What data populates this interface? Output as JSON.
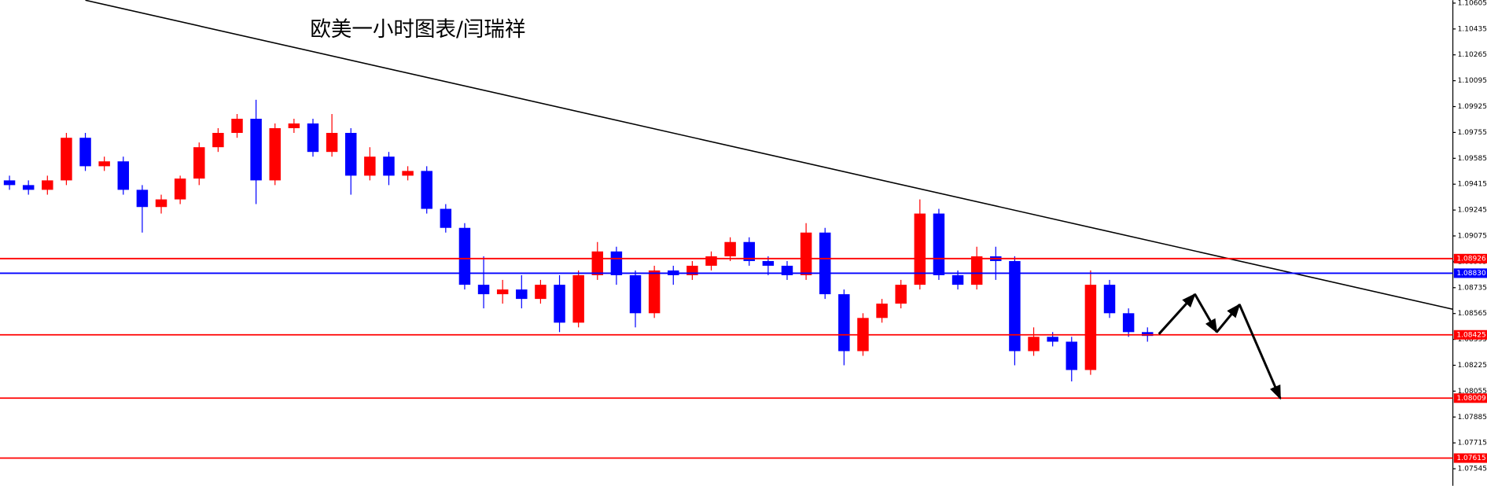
{
  "chart_data": {
    "type": "candlestick",
    "title": "欧美一小时图表/闫瑞祥",
    "up_color": "#ff0000",
    "down_color": "#0000ff",
    "open": [
      1.0944,
      1.09409,
      1.09378,
      1.0944,
      1.0972,
      1.09533,
      1.09565,
      1.09378,
      1.09265,
      1.09315,
      1.09452,
      1.09658,
      1.09752,
      1.09845,
      1.0944,
      1.09783,
      1.09814,
      1.09627,
      1.09752,
      1.09471,
      1.09596,
      1.09471,
      1.09502,
      1.09253,
      1.09128,
      1.08754,
      1.08692,
      1.08723,
      1.08661,
      1.08754,
      1.08505,
      1.08817,
      1.08973,
      1.08817,
      1.08567,
      1.08848,
      1.08817,
      1.08879,
      1.08941,
      1.09035,
      1.0891,
      1.08879,
      1.08817,
      1.09097,
      1.08692,
      1.08318,
      1.08536,
      1.0863,
      1.08754,
      1.09222,
      1.08817,
      1.08754,
      1.08941,
      1.0891,
      1.08318,
      1.08412,
      1.0838,
      1.08194,
      1.08754,
      1.08567,
      1.08443
    ],
    "high": [
      1.09471,
      1.0944,
      1.09471,
      1.09752,
      1.09752,
      1.09596,
      1.09596,
      1.09409,
      1.09346,
      1.09471,
      1.09689,
      1.09783,
      1.09876,
      1.0997,
      1.09814,
      1.09845,
      1.09845,
      1.09876,
      1.09783,
      1.09658,
      1.09627,
      1.09533,
      1.09533,
      1.09284,
      1.09159,
      1.08941,
      1.08786,
      1.08817,
      1.08786,
      1.08817,
      1.08848,
      1.09035,
      1.09004,
      1.08848,
      1.08879,
      1.08879,
      1.0891,
      1.08973,
      1.09066,
      1.09066,
      1.08941,
      1.0891,
      1.09159,
      1.09128,
      1.08723,
      1.08567,
      1.08661,
      1.08786,
      1.09315,
      1.09253,
      1.08848,
      1.09004,
      1.09004,
      1.08941,
      1.08474,
      1.08443,
      1.08412,
      1.08848,
      1.08786,
      1.08599,
      1.08474
    ],
    "low": [
      1.09378,
      1.09346,
      1.09346,
      1.09409,
      1.09502,
      1.09502,
      1.09346,
      1.09097,
      1.09222,
      1.09284,
      1.09409,
      1.09627,
      1.0972,
      1.09284,
      1.09409,
      1.09752,
      1.09596,
      1.09596,
      1.09346,
      1.0944,
      1.09409,
      1.0944,
      1.09222,
      1.09097,
      1.08723,
      1.08599,
      1.0863,
      1.08599,
      1.0863,
      1.08443,
      1.08474,
      1.08786,
      1.08754,
      1.08474,
      1.08536,
      1.08754,
      1.08786,
      1.08848,
      1.0891,
      1.08879,
      1.08817,
      1.08786,
      1.08786,
      1.08661,
      1.08225,
      1.08287,
      1.08505,
      1.08599,
      1.08723,
      1.08786,
      1.08723,
      1.08723,
      1.08786,
      1.08225,
      1.08287,
      1.08349,
      1.08119,
      1.08162,
      1.08536,
      1.08412,
      1.0838
    ],
    "close": [
      1.09409,
      1.09378,
      1.0944,
      1.0972,
      1.09533,
      1.09565,
      1.09378,
      1.09265,
      1.09315,
      1.09452,
      1.09658,
      1.09752,
      1.09845,
      1.0944,
      1.09783,
      1.09814,
      1.09627,
      1.09752,
      1.09471,
      1.09596,
      1.09471,
      1.09502,
      1.09253,
      1.09128,
      1.08754,
      1.08692,
      1.08723,
      1.08661,
      1.08754,
      1.08505,
      1.08817,
      1.08973,
      1.08817,
      1.08567,
      1.08848,
      1.08817,
      1.08879,
      1.08941,
      1.09035,
      1.0891,
      1.08879,
      1.08817,
      1.09097,
      1.08692,
      1.08318,
      1.08536,
      1.0863,
      1.08754,
      1.09222,
      1.08817,
      1.08754,
      1.08941,
      1.0891,
      1.08318,
      1.08412,
      1.0838,
      1.08194,
      1.08754,
      1.08567,
      1.08443,
      1.08418
    ],
    "xlim": [
      -0.5,
      76.1
    ],
    "ylim": [
      1.07433,
      1.10624
    ],
    "yticks": [
      1.10605,
      1.10435,
      1.10265,
      1.10095,
      1.09925,
      1.09755,
      1.09585,
      1.09415,
      1.09245,
      1.09075,
      1.08905,
      1.08735,
      1.08565,
      1.08395,
      1.08225,
      1.08055,
      1.07885,
      1.07715,
      1.07545
    ],
    "levels": [
      1.08926,
      {
        "value": 1.0883,
        "label": "1.08830"
      },
      1.08425,
      1.08009,
      1.07615
    ],
    "level_colors": [
      "#ff0000",
      "#0000ff",
      "#ff0000",
      "#ff0000",
      "#ff0000"
    ],
    "trendline": {
      "x": [
        4,
        76.1
      ],
      "y": [
        1.10624,
        1.08593
      ],
      "color": "#000000"
    },
    "forecast": {
      "x": [
        60.6,
        62.5,
        63.65,
        64.85,
        67.0
      ],
      "y": [
        1.0843,
        1.08692,
        1.08443,
        1.08624,
        1.08007
      ],
      "color": "#000000"
    }
  }
}
